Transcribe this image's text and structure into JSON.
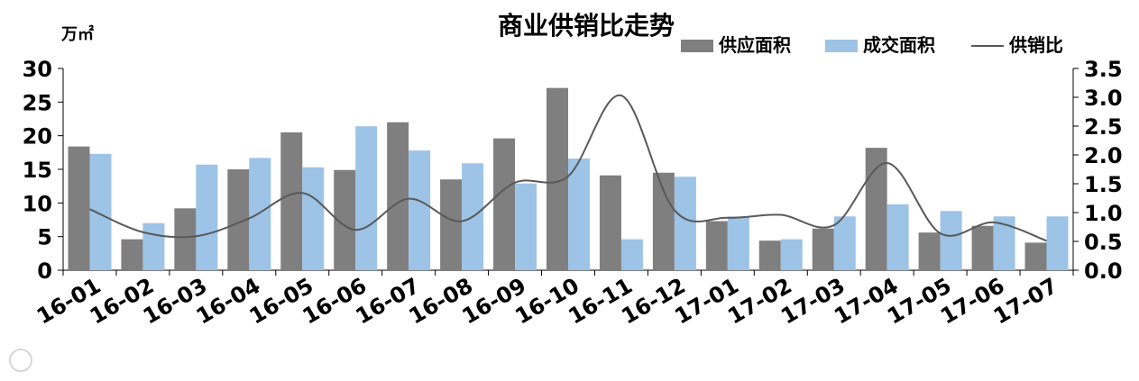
{
  "chart_data": {
    "type": "bar",
    "title": "商业供销比走势",
    "ylabel": "万㎡",
    "y2label": "",
    "xlabel": "",
    "ylim": [
      0,
      30
    ],
    "y2lim": [
      0,
      3.5
    ],
    "yticks": [
      "0",
      "5",
      "10",
      "15",
      "20",
      "25",
      "30"
    ],
    "y2ticks": [
      "0.0",
      "0.5",
      "1.0",
      "1.5",
      "2.0",
      "2.5",
      "3.0",
      "3.5"
    ],
    "grid": false,
    "legend_position": "top-right",
    "categories": [
      "16-01",
      "16-02",
      "16-03",
      "16-04",
      "16-05",
      "16-06",
      "16-07",
      "16-08",
      "16-09",
      "16-10",
      "16-11",
      "16-12",
      "17-01",
      "17-02",
      "17-03",
      "17-04",
      "17-05",
      "17-06",
      "17-07"
    ],
    "series": [
      {
        "name": "供应面积",
        "type": "bar",
        "axis": "left",
        "color": "#7f7f7f",
        "values": [
          18.4,
          4.6,
          9.2,
          15.0,
          20.5,
          14.9,
          22.0,
          13.5,
          19.6,
          27.1,
          14.1,
          14.5,
          7.3,
          4.4,
          6.2,
          18.2,
          5.6,
          6.6,
          4.1
        ]
      },
      {
        "name": "成交面积",
        "type": "bar",
        "axis": "left",
        "color": "#9dc3e6",
        "values": [
          17.3,
          7.0,
          15.7,
          16.7,
          15.3,
          21.4,
          17.8,
          15.9,
          12.9,
          16.6,
          4.6,
          13.9,
          8.0,
          4.6,
          8.0,
          9.8,
          8.8,
          8.0,
          8.0
        ]
      },
      {
        "name": "供销比",
        "type": "line",
        "axis": "right",
        "color": "#595959",
        "values": [
          1.06,
          0.66,
          0.59,
          0.9,
          1.34,
          0.7,
          1.24,
          0.85,
          1.52,
          1.63,
          3.03,
          1.04,
          0.91,
          0.96,
          0.78,
          1.86,
          0.64,
          0.83,
          0.51
        ]
      }
    ]
  }
}
